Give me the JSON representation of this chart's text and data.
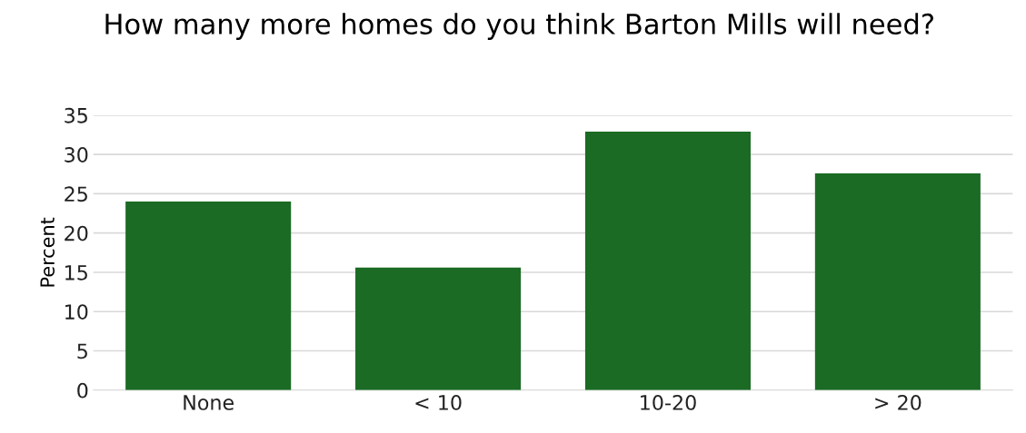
{
  "chart_data": {
    "type": "bar",
    "title": "How many more homes do you think Barton Mills will need?",
    "ylabel": "Percent",
    "categories": [
      "None",
      "< 10",
      "10-20",
      "> 20"
    ],
    "values": [
      24.0,
      15.6,
      32.9,
      27.6
    ],
    "color": "#1b6b24",
    "ylim": [
      0,
      35
    ],
    "yticks": [
      0,
      5,
      10,
      15,
      20,
      25,
      30,
      35
    ],
    "grid": "y"
  }
}
